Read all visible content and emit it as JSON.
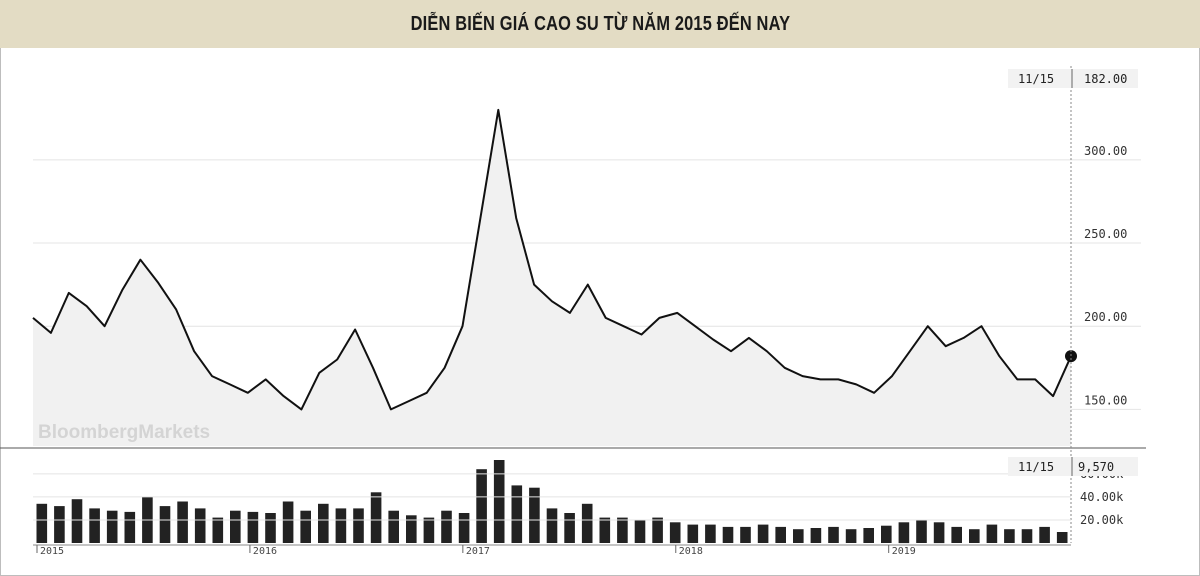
{
  "title": "DIỄN BIẾN GIÁ CAO SU TỪ NĂM 2015 ĐẾN NAY",
  "watermark": "BloombergMarkets",
  "colors": {
    "title_bg": "#e3dcc4",
    "line": "#111111",
    "area": "#f1f1f1",
    "grid": "#e4e4e4",
    "volume": "#222222"
  },
  "chart_data": [
    {
      "type": "line",
      "title": "",
      "xlabel": "",
      "ylabel": "",
      "x_ticks": [
        "2015",
        "2016",
        "2017",
        "2018",
        "2019"
      ],
      "y_ticks": [
        150,
        200,
        250,
        300
      ],
      "y_tick_labels": [
        "150.00",
        "200.00",
        "250.00",
        "300.00"
      ],
      "ylim": [
        128,
        360
      ],
      "grid": true,
      "legend": "none",
      "last": {
        "date": "11/15",
        "value_label": "182.00",
        "value": 182
      },
      "x_dates": [
        "2015-01",
        "2015-02",
        "2015-03",
        "2015-04",
        "2015-05",
        "2015-06",
        "2015-07",
        "2015-08",
        "2015-09",
        "2015-10",
        "2015-11",
        "2015-12",
        "2016-01",
        "2016-02",
        "2016-03",
        "2016-04",
        "2016-05",
        "2016-06",
        "2016-07",
        "2016-08",
        "2016-09",
        "2016-10",
        "2016-11",
        "2016-12",
        "2017-01",
        "2017-02",
        "2017-03",
        "2017-04",
        "2017-05",
        "2017-06",
        "2017-07",
        "2017-08",
        "2017-09",
        "2017-10",
        "2017-11",
        "2017-12",
        "2018-01",
        "2018-02",
        "2018-03",
        "2018-04",
        "2018-05",
        "2018-06",
        "2018-07",
        "2018-08",
        "2018-09",
        "2018-10",
        "2018-11",
        "2018-12",
        "2019-01",
        "2019-02",
        "2019-03",
        "2019-04",
        "2019-05",
        "2019-06",
        "2019-07",
        "2019-08",
        "2019-09",
        "2019-10",
        "2019-11"
      ],
      "values": [
        205,
        196,
        220,
        212,
        200,
        222,
        240,
        226,
        210,
        185,
        170,
        165,
        160,
        168,
        158,
        150,
        172,
        180,
        198,
        175,
        150,
        155,
        160,
        175,
        200,
        265,
        330,
        265,
        225,
        215,
        208,
        225,
        205,
        200,
        195,
        205,
        208,
        200,
        192,
        185,
        193,
        185,
        175,
        170,
        168,
        168,
        165,
        160,
        170,
        185,
        200,
        188,
        193,
        200,
        182,
        168,
        168,
        158,
        182
      ]
    },
    {
      "type": "bar",
      "title": "",
      "xlabel": "",
      "ylabel": "",
      "y_ticks": [
        20000,
        40000,
        60000
      ],
      "y_tick_labels": [
        "20.00k",
        "40.00k",
        "60.00k"
      ],
      "ylim": [
        0,
        72000
      ],
      "last": {
        "date": "11/15",
        "value_label": "9,570",
        "value": 9570
      },
      "values": [
        34000,
        32000,
        38000,
        30000,
        28000,
        27000,
        40000,
        32000,
        36000,
        30000,
        22000,
        28000,
        27000,
        26000,
        36000,
        28000,
        34000,
        30000,
        30000,
        44000,
        28000,
        24000,
        22000,
        28000,
        26000,
        64000,
        72000,
        50000,
        48000,
        30000,
        26000,
        34000,
        22000,
        22000,
        20000,
        22000,
        18000,
        16000,
        16000,
        14000,
        14000,
        16000,
        14000,
        12000,
        13000,
        14000,
        12000,
        13000,
        15000,
        18000,
        20000,
        18000,
        14000,
        12000,
        16000,
        12000,
        12000,
        14000,
        9570
      ]
    }
  ]
}
